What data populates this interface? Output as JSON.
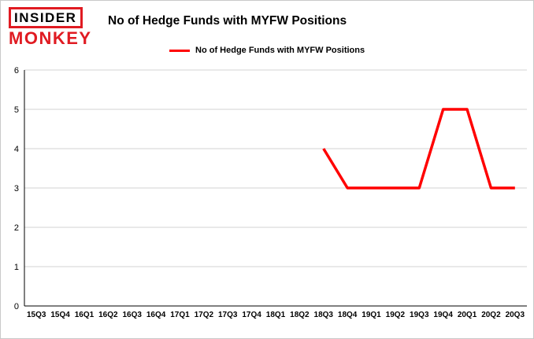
{
  "logo": {
    "top": "INSIDER",
    "bottom": "MONKEY"
  },
  "header": {
    "title": "No of Hedge Funds with MYFW Positions"
  },
  "legend": {
    "label": "No of Hedge Funds with MYFW Positions"
  },
  "colors": {
    "line": "#ff0000",
    "logo_red": "#e01b22",
    "grid": "#d3d3d3",
    "axis": "#000000",
    "background": "#ffffff"
  },
  "chart_data": {
    "type": "line",
    "title": "No of Hedge Funds with MYFW Positions",
    "xlabel": "",
    "ylabel": "",
    "ylim": [
      0,
      6
    ],
    "yticks": [
      0,
      1,
      2,
      3,
      4,
      5,
      6
    ],
    "grid": true,
    "legend_position": "top",
    "categories": [
      "15Q3",
      "15Q4",
      "16Q1",
      "16Q2",
      "16Q3",
      "16Q4",
      "17Q1",
      "17Q2",
      "17Q3",
      "17Q4",
      "18Q1",
      "18Q2",
      "18Q3",
      "18Q4",
      "19Q1",
      "19Q2",
      "19Q3",
      "19Q4",
      "20Q1",
      "20Q2",
      "20Q3"
    ],
    "series": [
      {
        "name": "No of Hedge Funds with MYFW Positions",
        "color": "#ff0000",
        "values": [
          null,
          null,
          null,
          null,
          null,
          null,
          null,
          null,
          null,
          null,
          null,
          null,
          4,
          3,
          3,
          3,
          3,
          5,
          5,
          3,
          3
        ]
      }
    ]
  }
}
